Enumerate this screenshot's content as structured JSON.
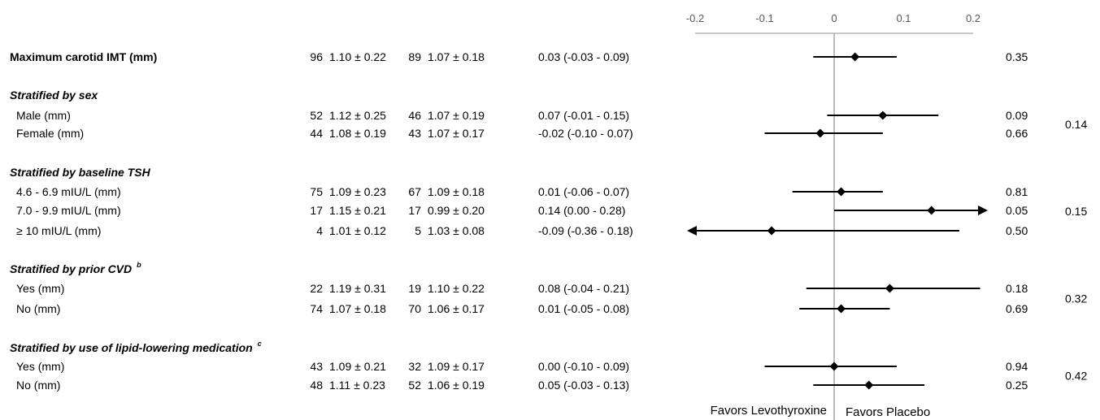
{
  "chart_data": {
    "type": "forest",
    "axis": {
      "ticks": [
        "-0.2",
        "-0.1",
        "0",
        "0.1",
        "0.2"
      ],
      "xlim": [
        -0.2,
        0.2
      ]
    },
    "footer": {
      "left_label": "Favors Levothyroxine",
      "right_label": "Favors Placebo"
    },
    "rows": [
      {
        "kind": "main",
        "label": "Maximum carotid IMT (mm)",
        "n1": "96",
        "v1": "1.10 ± 0.22",
        "n2": "89",
        "v2": "1.07 ± 0.18",
        "diff_text": "0.03 (-0.03 - 0.09)",
        "est": 0.03,
        "lo": -0.03,
        "hi": 0.09,
        "p": "0.35"
      },
      {
        "kind": "header",
        "label": "Stratified by sex"
      },
      {
        "kind": "sub",
        "label": "Male (mm)",
        "n1": "52",
        "v1": "1.12 ± 0.25",
        "n2": "46",
        "v2": "1.07 ± 0.19",
        "diff_text": "0.07 (-0.01 - 0.15)",
        "est": 0.07,
        "lo": -0.01,
        "hi": 0.15,
        "p": "0.09"
      },
      {
        "kind": "sub",
        "label": "Female (mm)",
        "n1": "44",
        "v1": "1.08 ± 0.19",
        "n2": "43",
        "v2": "1.07 ± 0.17",
        "diff_text": "-0.02 (-0.10 - 0.07)",
        "est": -0.02,
        "lo": -0.1,
        "hi": 0.07,
        "p": "0.66"
      },
      {
        "kind": "header",
        "label": "Stratified by baseline TSH"
      },
      {
        "kind": "sub",
        "label": "4.6 - 6.9 mIU/L (mm)",
        "n1": "75",
        "v1": "1.09 ± 0.23",
        "n2": "67",
        "v2": "1.09 ± 0.18",
        "diff_text": "0.01 (-0.06 - 0.07)",
        "est": 0.01,
        "lo": -0.06,
        "hi": 0.07,
        "p": "0.81"
      },
      {
        "kind": "sub",
        "label": "7.0 - 9.9 mIU/L (mm)",
        "n1": "17",
        "v1": "1.15 ± 0.21",
        "n2": "17",
        "v2": "0.99 ± 0.20",
        "diff_text": "0.14 (0.00 - 0.28)",
        "est": 0.14,
        "lo": 0.0,
        "hi": 0.28,
        "p": "0.05"
      },
      {
        "kind": "sub",
        "label": "≥ 10 mIU/L (mm)",
        "n1": "4",
        "v1": "1.01 ± 0.12",
        "n2": "5",
        "v2": "1.03 ± 0.08",
        "diff_text": "-0.09 (-0.36 - 0.18)",
        "est": -0.09,
        "lo": -0.36,
        "hi": 0.18,
        "p": "0.50"
      },
      {
        "kind": "header",
        "label": "Stratified by prior CVD",
        "sup": "b"
      },
      {
        "kind": "sub",
        "label": "Yes (mm)",
        "n1": "22",
        "v1": "1.19 ± 0.31",
        "n2": "19",
        "v2": "1.10 ± 0.22",
        "diff_text": "0.08 (-0.04 - 0.21)",
        "est": 0.08,
        "lo": -0.04,
        "hi": 0.21,
        "p": "0.18"
      },
      {
        "kind": "sub",
        "label": "No (mm)",
        "n1": "74",
        "v1": "1.07 ± 0.18",
        "n2": "70",
        "v2": "1.06 ± 0.17",
        "diff_text": "0.01 (-0.05 - 0.08)",
        "est": 0.01,
        "lo": -0.05,
        "hi": 0.08,
        "p": "0.69"
      },
      {
        "kind": "header",
        "label": "Stratified by use of lipid-lowering medication",
        "sup": "c"
      },
      {
        "kind": "sub",
        "label": "Yes (mm)",
        "n1": "43",
        "v1": "1.09 ± 0.21",
        "n2": "32",
        "v2": "1.09 ± 0.17",
        "diff_text": "0.00 (-0.10 - 0.09)",
        "est": 0.0,
        "lo": -0.1,
        "hi": 0.09,
        "p": "0.94"
      },
      {
        "kind": "sub",
        "label": "No (mm)",
        "n1": "48",
        "v1": "1.11 ± 0.23",
        "n2": "52",
        "v2": "1.06 ± 0.19",
        "diff_text": "0.05 (-0.03 - 0.13)",
        "est": 0.05,
        "lo": -0.03,
        "hi": 0.13,
        "p": "0.25"
      }
    ],
    "interaction_p": [
      {
        "value": "0.14",
        "rows": [
          2,
          3
        ]
      },
      {
        "value": "0.15",
        "rows": [
          5,
          6,
          7
        ]
      },
      {
        "value": "0.32",
        "rows": [
          9,
          10
        ]
      },
      {
        "value": "0.42",
        "rows": [
          12,
          13
        ]
      }
    ]
  }
}
